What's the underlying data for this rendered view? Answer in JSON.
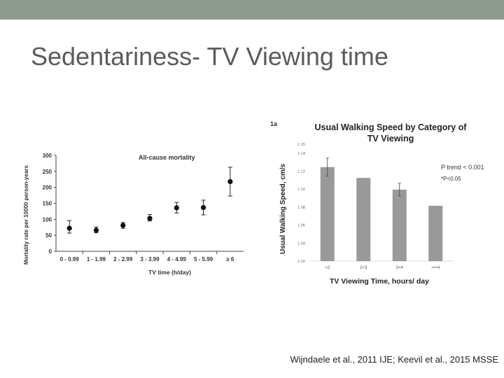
{
  "slide": {
    "title": "Sedentariness- TV Viewing time",
    "citation": "Wijndaele et al., 2011 IJE; Keevil et al., 2015 MSSE",
    "colors": {
      "topbar": "#8c9a90",
      "title": "#5b5b5b",
      "bar": "#999999"
    }
  },
  "chart_data": [
    {
      "type": "scatter",
      "title": "All-cause mortality",
      "xlabel": "TV time (h/day)",
      "ylabel": "Mortality rate per 10000 person-years",
      "ylim": [
        0,
        300
      ],
      "yticks": [
        0,
        50,
        100,
        150,
        200,
        250,
        300
      ],
      "categories": [
        "0 - 0.99",
        "1 - 1.99",
        "2 - 2.99",
        "3 - 3.99",
        "4 - 4.99",
        "5 - 5.99",
        "≥ 6"
      ],
      "values": [
        72,
        66,
        81,
        103,
        136,
        137,
        218
      ],
      "err_low": [
        57,
        58,
        72,
        95,
        120,
        114,
        173
      ],
      "err_high": [
        96,
        76,
        90,
        115,
        153,
        160,
        263
      ],
      "grid": false
    },
    {
      "type": "bar",
      "panel_label": "1a",
      "title": "Usual Walking Speed by Category of TV Viewing",
      "xlabel": "TV Viewing Time, hours/ day",
      "ylabel": "Usual Walking Speed, cm/s",
      "ylim": [
        1.02,
        1.15
      ],
      "yticks": [
        "1.02",
        "1.04",
        "1.06",
        "1.08",
        "1.10",
        "1.12",
        "1.14",
        "1.15"
      ],
      "categories": [
        "<2",
        "2<3",
        "3<4",
        ">/=4"
      ],
      "values": [
        1.1245,
        1.1125,
        1.0995,
        1.0815
      ],
      "err_low": [
        1.1145,
        null,
        1.0925,
        null
      ],
      "err_high": [
        1.1345,
        null,
        1.1065,
        null
      ],
      "annotations": [
        "P trend < 0.001",
        "*P<0.05"
      ],
      "grid": false
    }
  ]
}
